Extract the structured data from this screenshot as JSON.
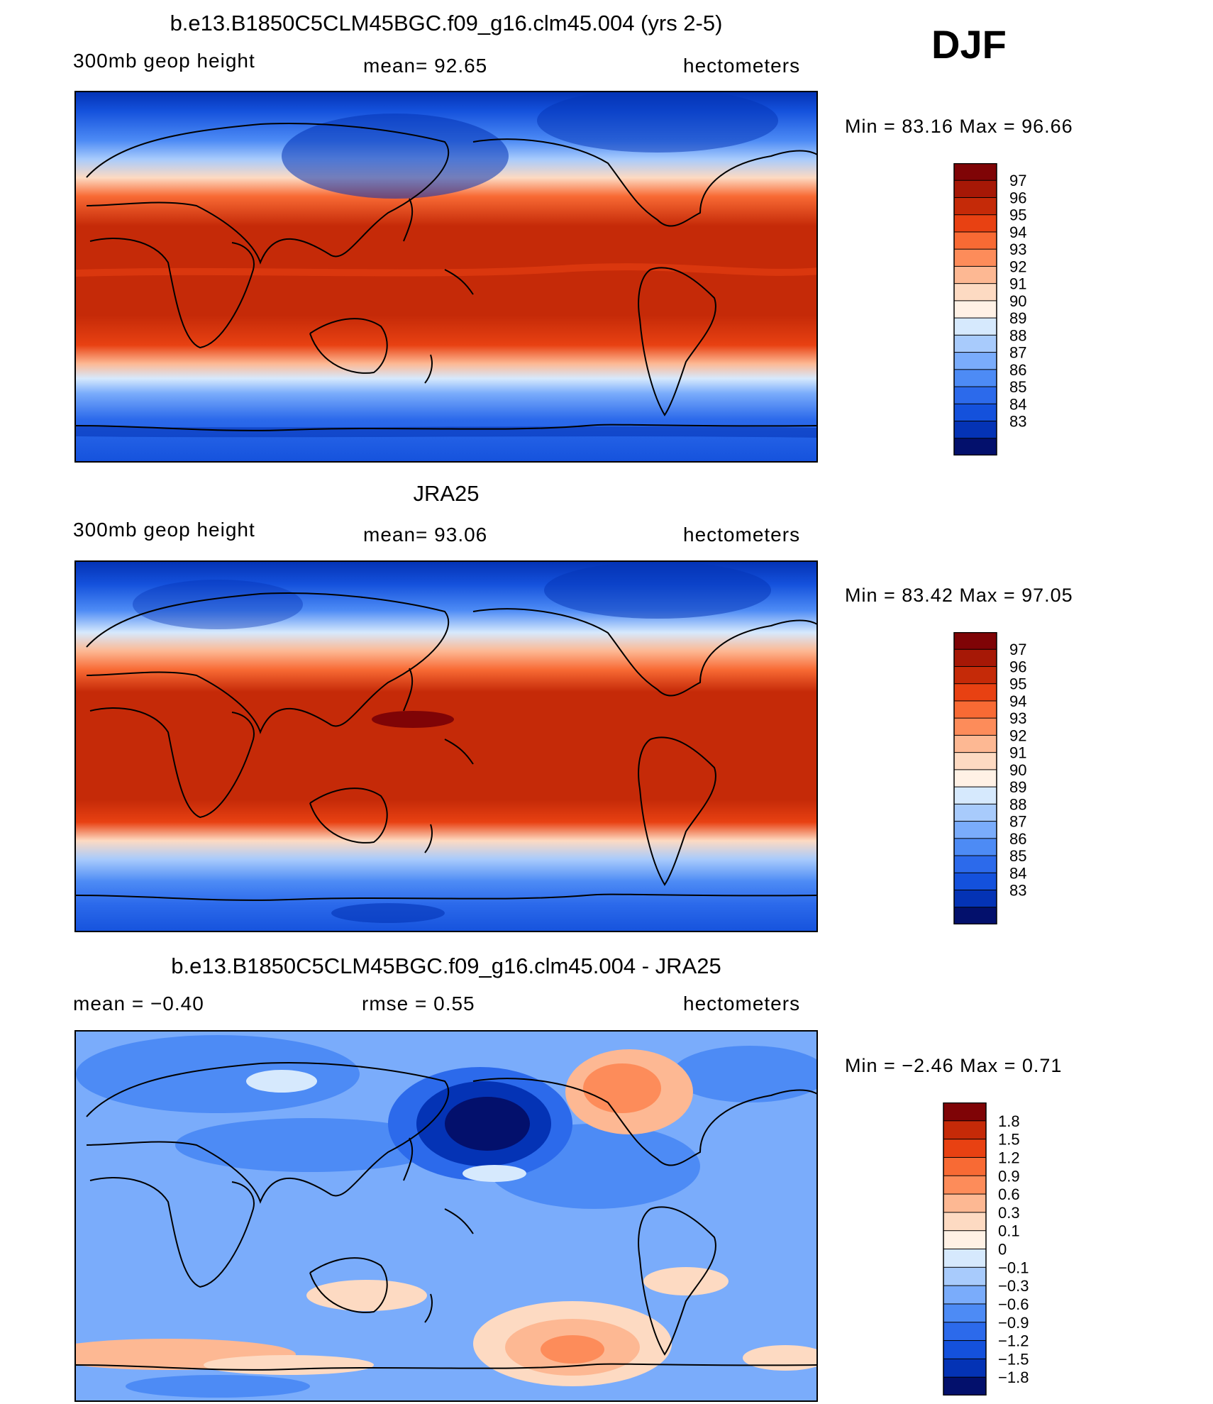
{
  "season": "DJF",
  "colors": {
    "height_scale": [
      "#03106c",
      "#0433b5",
      "#1451dc",
      "#2c6aeb",
      "#4d8bf5",
      "#7aacfb",
      "#a8cbfc",
      "#d6e9fd",
      "#fff1e5",
      "#fddac2",
      "#fdb893",
      "#fd8c5a",
      "#f86a34",
      "#e84112",
      "#c52a08",
      "#a61806",
      "#7f0406"
    ],
    "diff_scale": [
      "#03106c",
      "#0433b5",
      "#1451dc",
      "#2c6aeb",
      "#4d8bf5",
      "#7aacfb",
      "#a8cbfc",
      "#d6e9fd",
      "#fff1e5",
      "#fddac2",
      "#fdb893",
      "#fd8c5a",
      "#f86a34",
      "#e84112",
      "#c52a08",
      "#7f0406"
    ]
  },
  "panels": [
    {
      "title": "b.e13.B1850C5CLM45BGC.f09_g16.clm45.004 (yrs 2-5)",
      "left_label": "300mb geop height",
      "center_label": "mean=  92.65",
      "right_label": "hectometers",
      "minmax": "Min =   83.16 Max =   96.66",
      "colorbar_labels": [
        "97",
        "96",
        "95",
        "94",
        "93",
        "92",
        "91",
        "90",
        "89",
        "88",
        "87",
        "86",
        "85",
        "84",
        "83"
      ]
    },
    {
      "title": "JRA25",
      "left_label": "300mb geop height",
      "center_label": "mean=  93.06",
      "right_label": "hectometers",
      "minmax": "Min =   83.42 Max =   97.05",
      "colorbar_labels": [
        "97",
        "96",
        "95",
        "94",
        "93",
        "92",
        "91",
        "90",
        "89",
        "88",
        "87",
        "86",
        "85",
        "84",
        "83"
      ]
    },
    {
      "title": "b.e13.B1850C5CLM45BGC.f09_g16.clm45.004 - JRA25",
      "left_label": "mean =   −0.40",
      "center_label": "rmse =    0.55",
      "right_label": "hectometers",
      "minmax": "Min =   −2.46 Max =    0.71",
      "colorbar_labels": [
        "1.8",
        "1.5",
        "1.2",
        "0.9",
        "0.6",
        "0.3",
        "0.1",
        "0",
        "−0.1",
        "−0.3",
        "−0.6",
        "−0.9",
        "−1.2",
        "−1.5",
        "−1.8"
      ]
    }
  ]
}
